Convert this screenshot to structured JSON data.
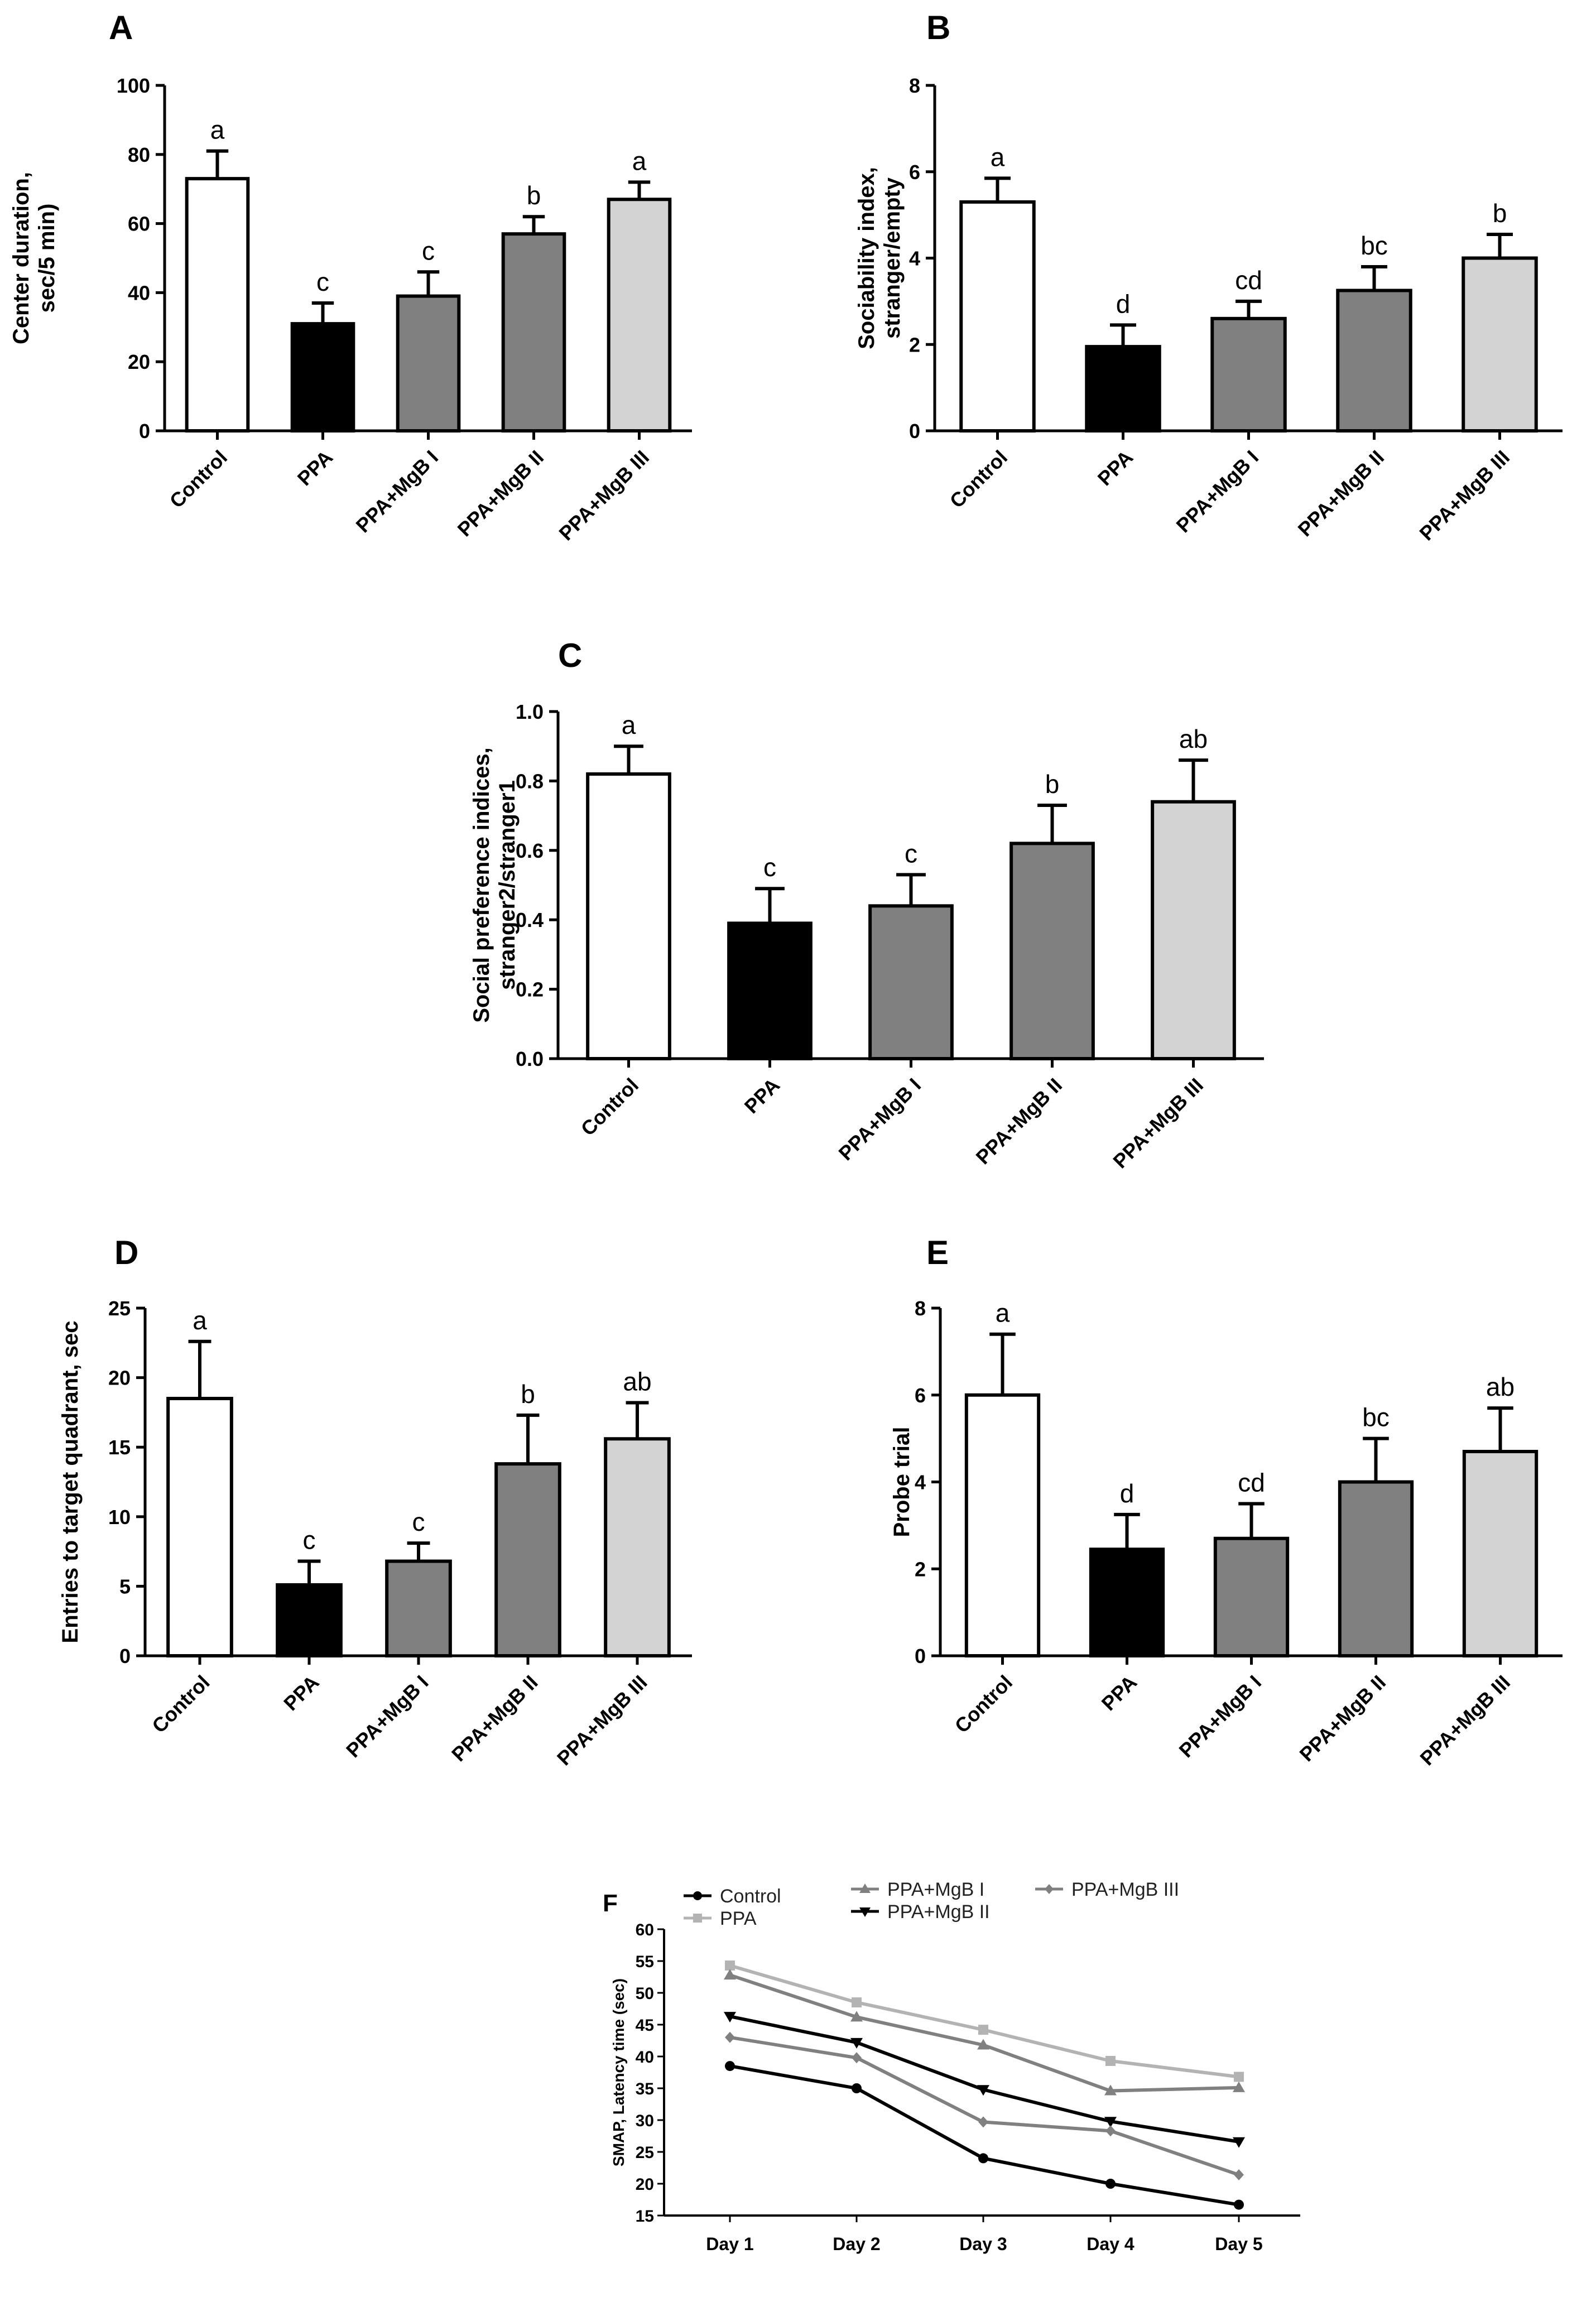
{
  "chart_data": [
    {
      "panel": "A",
      "type": "bar",
      "categories": [
        "Control",
        "PPA",
        "PPA+MgB I",
        "PPA+MgB II",
        "PPA+MgB III"
      ],
      "values": [
        73,
        31,
        39,
        57,
        67
      ],
      "errors": [
        8,
        6,
        7,
        5,
        5
      ],
      "sig_letters": [
        "a",
        "c",
        "c",
        "b",
        "a"
      ],
      "fill_colors": [
        "#ffffff",
        "#000000",
        "#808080",
        "#808080",
        "#d3d3d3"
      ],
      "ylabel": [
        "Center duration,",
        "sec/5 min)"
      ],
      "ylim": [
        0,
        100
      ],
      "yticks": [
        0,
        20,
        40,
        60,
        80,
        100
      ],
      "ytick_labels": [
        "0",
        "20",
        "40",
        "60",
        "80",
        "100"
      ]
    },
    {
      "panel": "B",
      "type": "bar",
      "categories": [
        "Control",
        "PPA",
        "PPA+MgB I",
        "PPA+MgB II",
        "PPA+MgB III"
      ],
      "values": [
        5.3,
        1.95,
        2.6,
        3.25,
        4.0
      ],
      "errors": [
        0.55,
        0.5,
        0.4,
        0.55,
        0.55
      ],
      "sig_letters": [
        "a",
        "d",
        "cd",
        "bc",
        "b"
      ],
      "fill_colors": [
        "#ffffff",
        "#000000",
        "#808080",
        "#808080",
        "#d3d3d3"
      ],
      "ylabel": [
        "Sociability index,",
        "stranger/empty"
      ],
      "ylim": [
        0,
        8
      ],
      "yticks": [
        0,
        2,
        4,
        6,
        8
      ],
      "ytick_labels": [
        "0",
        "2",
        "4",
        "6",
        "8"
      ]
    },
    {
      "panel": "C",
      "type": "bar",
      "categories": [
        "Control",
        "PPA",
        "PPA+MgB I",
        "PPA+MgB II",
        "PPA+MgB III"
      ],
      "values": [
        0.82,
        0.39,
        0.44,
        0.62,
        0.74
      ],
      "errors": [
        0.08,
        0.1,
        0.09,
        0.11,
        0.12
      ],
      "sig_letters": [
        "a",
        "c",
        "c",
        "b",
        "ab"
      ],
      "fill_colors": [
        "#ffffff",
        "#000000",
        "#808080",
        "#808080",
        "#d3d3d3"
      ],
      "ylabel": [
        "Social preference indices,",
        "stranger2/stranger1"
      ],
      "ylim": [
        0,
        1.0
      ],
      "yticks": [
        0,
        0.2,
        0.4,
        0.6,
        0.8,
        1.0
      ],
      "ytick_labels": [
        "0.0",
        "0.2",
        "0.4",
        "0.6",
        "0.8",
        "1.0"
      ]
    },
    {
      "panel": "D",
      "type": "bar",
      "categories": [
        "Control",
        "PPA",
        "PPA+MgB I",
        "PPA+MgB II",
        "PPA+MgB III"
      ],
      "values": [
        18.5,
        5.1,
        6.8,
        13.8,
        15.6
      ],
      "errors": [
        4.1,
        1.7,
        1.3,
        3.5,
        2.6
      ],
      "sig_letters": [
        "a",
        "c",
        "c",
        "b",
        "ab"
      ],
      "fill_colors": [
        "#ffffff",
        "#000000",
        "#808080",
        "#808080",
        "#d3d3d3"
      ],
      "ylabel": [
        "Entries to target quadrant, sec"
      ],
      "ylim": [
        0,
        25
      ],
      "yticks": [
        0,
        5,
        10,
        15,
        20,
        25
      ],
      "ytick_labels": [
        "0",
        "5",
        "10",
        "15",
        "20",
        "25"
      ]
    },
    {
      "panel": "E",
      "type": "bar",
      "categories": [
        "Control",
        "PPA",
        "PPA+MgB I",
        "PPA+MgB II",
        "PPA+MgB III"
      ],
      "values": [
        6.0,
        2.45,
        2.7,
        4.0,
        4.7
      ],
      "errors": [
        1.4,
        0.8,
        0.8,
        1.0,
        1.0
      ],
      "sig_letters": [
        "a",
        "d",
        "cd",
        "bc",
        "ab"
      ],
      "fill_colors": [
        "#ffffff",
        "#000000",
        "#808080",
        "#808080",
        "#d3d3d3"
      ],
      "ylabel": [
        "Probe trial"
      ],
      "ylim": [
        0,
        8
      ],
      "yticks": [
        0,
        2,
        4,
        6,
        8
      ],
      "ytick_labels": [
        "0",
        "2",
        "4",
        "6",
        "8"
      ]
    },
    {
      "panel": "F",
      "type": "line",
      "x": [
        "Day 1",
        "Day 2",
        "Day 3",
        "Day 4",
        "Day 5"
      ],
      "series": [
        {
          "name": "Control",
          "values": [
            38.5,
            35,
            24,
            20,
            16.7
          ],
          "color": "#000000",
          "marker": "circle"
        },
        {
          "name": "PPA",
          "values": [
            54.3,
            48.5,
            44.2,
            39.3,
            36.8
          ],
          "color": "#b3b3b3",
          "marker": "square"
        },
        {
          "name": "PPA+MgB I",
          "values": [
            52.8,
            46.2,
            41.8,
            34.6,
            35.1
          ],
          "color": "#808080",
          "marker": "triangle-up"
        },
        {
          "name": "PPA+MgB II",
          "values": [
            46.3,
            42.2,
            34.8,
            29.8,
            26.6
          ],
          "color": "#000000",
          "marker": "triangle-down"
        },
        {
          "name": "PPA+MgB III",
          "values": [
            43,
            39.8,
            29.7,
            28.3,
            21.4
          ],
          "color": "#808080",
          "marker": "diamond"
        }
      ],
      "ylabel": "SMAP, Latency time (sec)",
      "ylim": [
        15,
        60
      ],
      "yticks": [
        15,
        20,
        25,
        30,
        35,
        40,
        45,
        50,
        55,
        60
      ],
      "ytick_labels": [
        "15",
        "20",
        "25",
        "30",
        "35",
        "40",
        "45",
        "50",
        "55",
        "60"
      ]
    }
  ]
}
